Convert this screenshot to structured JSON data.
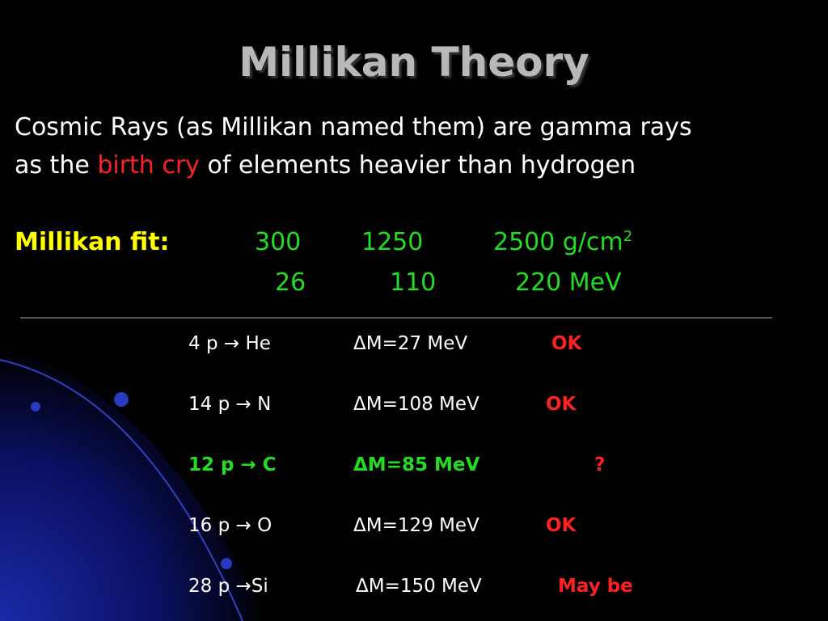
{
  "title": "Millikan Theory",
  "intro": {
    "line1": "Cosmic Rays (as Millikan named them) are gamma rays",
    "line2": [
      "as the ",
      "birth cry",
      " of elements heavier than hydrogen"
    ]
  },
  "fit": {
    "label": "Millikan fit:",
    "row1": [
      "300",
      "1250",
      "2500 g/cm"
    ],
    "row1_sup": "2",
    "row2": [
      "26",
      "110",
      "220 MeV"
    ]
  },
  "reactions": [
    [
      "4 p → He",
      "ΔM=27 MeV",
      "OK"
    ],
    [
      "14 p → N",
      "ΔM=108 MeV",
      "OK"
    ],
    [
      "12 p → C",
      "ΔM=85 MeV",
      "?"
    ],
    [
      "16 p → O",
      "ΔM=129 MeV",
      "OK"
    ],
    [
      "28 p →Si",
      "ΔM=150 MeV",
      "May be"
    ]
  ]
}
